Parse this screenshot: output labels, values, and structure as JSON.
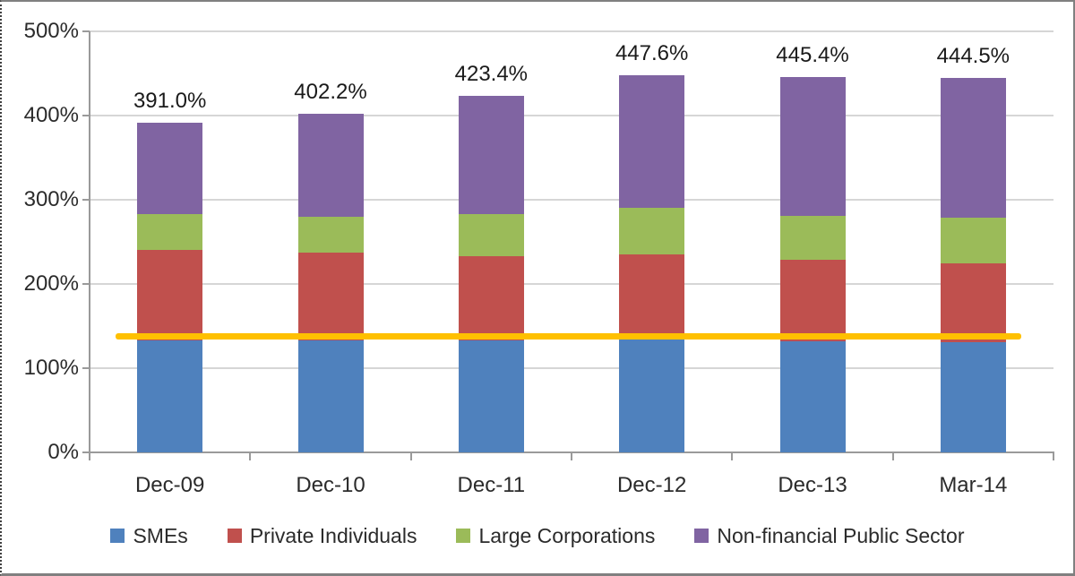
{
  "chart_data": {
    "type": "bar",
    "stacked": true,
    "title": "",
    "xlabel": "",
    "ylabel": "",
    "categories": [
      "Dec-09",
      "Dec-10",
      "Dec-11",
      "Dec-12",
      "Dec-13",
      "Mar-14"
    ],
    "series": [
      {
        "name": "SMEs",
        "color": "#4F81BD",
        "values": [
          133.5,
          133.0,
          133.0,
          134.0,
          132.0,
          131.0
        ]
      },
      {
        "name": "Private Individuals",
        "color": "#C0504D",
        "values": [
          107.0,
          104.5,
          100.0,
          101.0,
          96.5,
          93.0
        ]
      },
      {
        "name": "Large Corporations",
        "color": "#9BBB59",
        "values": [
          42.0,
          42.0,
          49.5,
          55.0,
          52.5,
          54.5
        ]
      },
      {
        "name": "Non-financial Public Sector",
        "color": "#8064A2",
        "values": [
          108.5,
          122.7,
          140.9,
          157.6,
          164.4,
          166.0
        ]
      }
    ],
    "totals_labels": [
      "391.0%",
      "402.2%",
      "423.4%",
      "447.6%",
      "445.4%",
      "444.5%"
    ],
    "reference_line": {
      "value": 138,
      "color": "#FFC000"
    },
    "y_axis": {
      "min": 0,
      "max": 500,
      "ticks": [
        "0%",
        "100%",
        "200%",
        "300%",
        "400%",
        "500%"
      ]
    },
    "grid": true,
    "legend_position": "bottom"
  }
}
